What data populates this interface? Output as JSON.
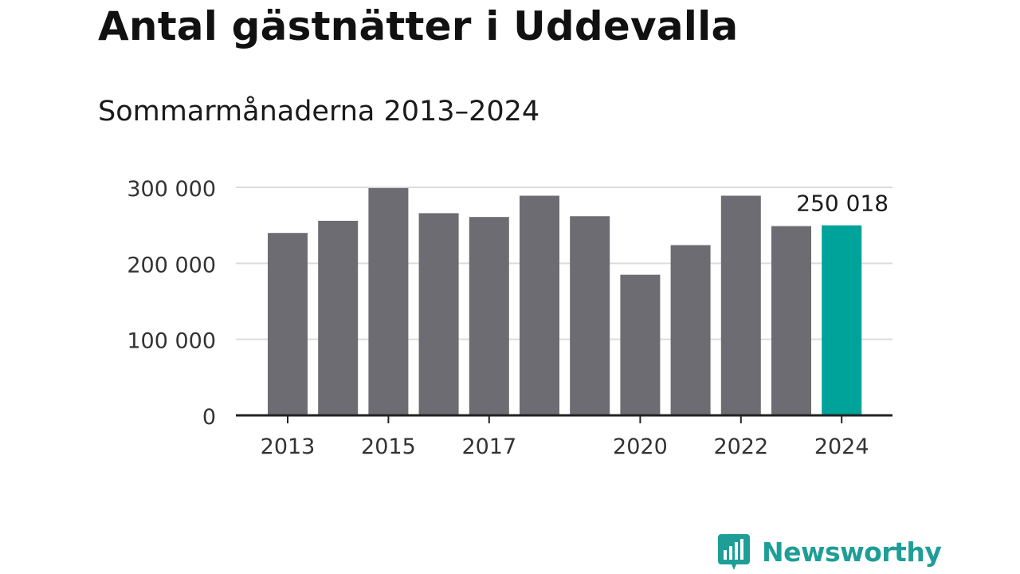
{
  "title": "Antal gästnätter i Uddevalla",
  "subtitle": "Sommarmånaderna 2013–2024",
  "brand": {
    "name": "Newsworthy"
  },
  "colors": {
    "bar": "#6d6c72",
    "highlight": "#00a39a",
    "axis": "#222222",
    "grid": "#dcdcdc",
    "label": "#333333",
    "brand": "#1e9e97"
  },
  "chart_data": {
    "type": "bar",
    "categories": [
      "2013",
      "2014",
      "2015",
      "2016",
      "2017",
      "2018",
      "2019",
      "2020",
      "2021",
      "2022",
      "2023",
      "2024"
    ],
    "values": [
      240000,
      256000,
      299000,
      266000,
      261000,
      289000,
      262000,
      185000,
      224000,
      289000,
      249000,
      250018
    ],
    "x_tick_labels": [
      "2013",
      "2015",
      "2017",
      "2020",
      "2022",
      "2024"
    ],
    "y_ticks": [
      0,
      100000,
      200000,
      300000
    ],
    "y_tick_labels": [
      "0",
      "100 000",
      "200 000",
      "300 000"
    ],
    "ylim": [
      0,
      300000
    ],
    "highlight_index": 11,
    "highlight_label": "250 018",
    "grid": true
  }
}
